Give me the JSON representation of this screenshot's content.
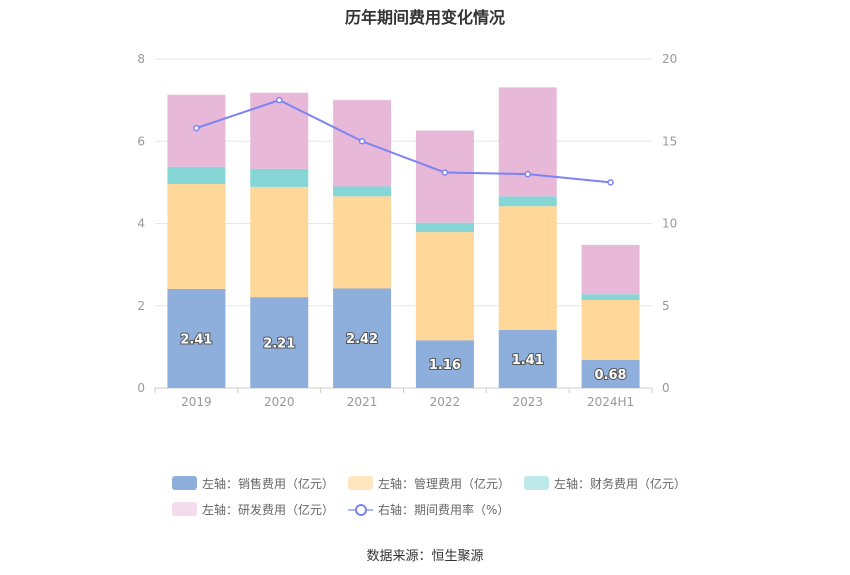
{
  "chart_data": {
    "type": "bar",
    "title": "历年期间费用变化情况",
    "categories": [
      "2019",
      "2020",
      "2021",
      "2022",
      "2023",
      "2024H1"
    ],
    "stacked": true,
    "ylim_left": [
      0,
      8
    ],
    "yticks_left": [
      0,
      2,
      4,
      6,
      8
    ],
    "ylim_right": [
      0,
      20
    ],
    "yticks_right": [
      0,
      5,
      10,
      15,
      20
    ],
    "grid": true,
    "legend_position": "bottom",
    "series": [
      {
        "name": "左轴：销售费用（亿元）",
        "axis": "left",
        "type": "bar",
        "color": "#8eaedb",
        "values": [
          2.41,
          2.21,
          2.42,
          1.16,
          1.41,
          0.68
        ],
        "labels_shown": true
      },
      {
        "name": "左轴：管理费用（亿元）",
        "axis": "left",
        "type": "bar",
        "color": "#ffd899",
        "values": [
          2.55,
          2.68,
          2.24,
          2.63,
          3.01,
          1.46
        ]
      },
      {
        "name": "左轴：财务费用（亿元）",
        "axis": "left",
        "type": "bar",
        "color": "#86d6d6",
        "values": [
          0.42,
          0.44,
          0.24,
          0.23,
          0.24,
          0.14
        ]
      },
      {
        "name": "左轴：研发费用（亿元）",
        "axis": "left",
        "type": "bar",
        "color": "#e8b8d9",
        "values": [
          1.75,
          1.85,
          2.1,
          2.24,
          2.65,
          1.2
        ]
      },
      {
        "name": "右轴：期间费用率（%）",
        "axis": "right",
        "type": "line",
        "color": "#7b84f2",
        "values": [
          15.8,
          17.5,
          15.0,
          13.1,
          13.0,
          12.5
        ]
      }
    ],
    "bar_labels": [
      "2.41",
      "2.21",
      "2.42",
      "1.16",
      "1.41",
      "0.68"
    ]
  },
  "legend": {
    "row1": [
      "左轴：销售费用（亿元）",
      "左轴：管理费用（亿元）",
      "左轴：财务费用（亿元）"
    ],
    "row2": [
      "左轴：研发费用（亿元）",
      "右轴：期间费用率（%）"
    ],
    "swatch_colors": [
      "#8eaedb",
      "#ffe6bf",
      "#bde9e9",
      "#f4dcec",
      "#7b84f2"
    ]
  },
  "source": "数据来源：恒生聚源"
}
